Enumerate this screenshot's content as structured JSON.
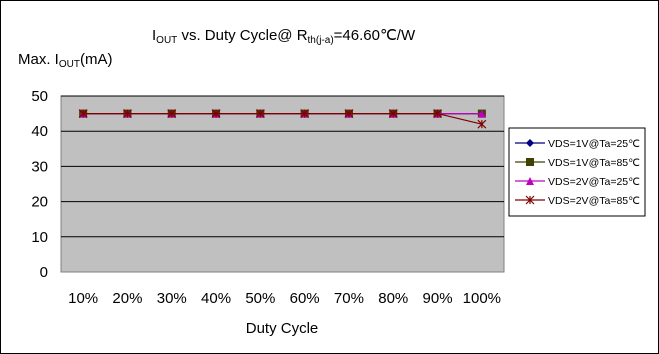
{
  "chart_data": {
    "type": "line",
    "title": {
      "prefix": "I",
      "prefix_sub": "OUT",
      "middle": " vs. Duty Cycle@ R",
      "middle_sub": "th(j-a)",
      "suffix": "=46.60℃/W"
    },
    "ylabel": {
      "prefix": "Max. I",
      "sub": "OUT",
      "suffix": "(mA)"
    },
    "xlabel": "Duty Cycle",
    "categories": [
      "10%",
      "20%",
      "30%",
      "40%",
      "50%",
      "60%",
      "70%",
      "80%",
      "90%",
      "100%"
    ],
    "ylim": [
      0,
      50
    ],
    "yticks": [
      "0",
      "10",
      "20",
      "30",
      "40",
      "50"
    ],
    "grid": true,
    "legend_position": "right",
    "plot_background": "#c0c0c0",
    "series": [
      {
        "name": "VDS=1V@Ta=25℃",
        "color": "#000080",
        "marker": "diamond",
        "values": [
          45,
          45,
          45,
          45,
          45,
          45,
          45,
          45,
          45,
          45
        ]
      },
      {
        "name": "VDS=1V@Ta=85℃",
        "color": "#404000",
        "marker": "square",
        "values": [
          45,
          45,
          45,
          45,
          45,
          45,
          45,
          45,
          45,
          45
        ]
      },
      {
        "name": "VDS=2V@Ta=25℃",
        "color": "#c000c0",
        "marker": "triangle",
        "values": [
          45,
          45,
          45,
          45,
          45,
          45,
          45,
          45,
          45,
          45
        ]
      },
      {
        "name": "VDS=2V@Ta=85℃",
        "color": "#800000",
        "marker": "star",
        "values": [
          45,
          45,
          45,
          45,
          45,
          45,
          45,
          45,
          45,
          42
        ]
      }
    ]
  }
}
